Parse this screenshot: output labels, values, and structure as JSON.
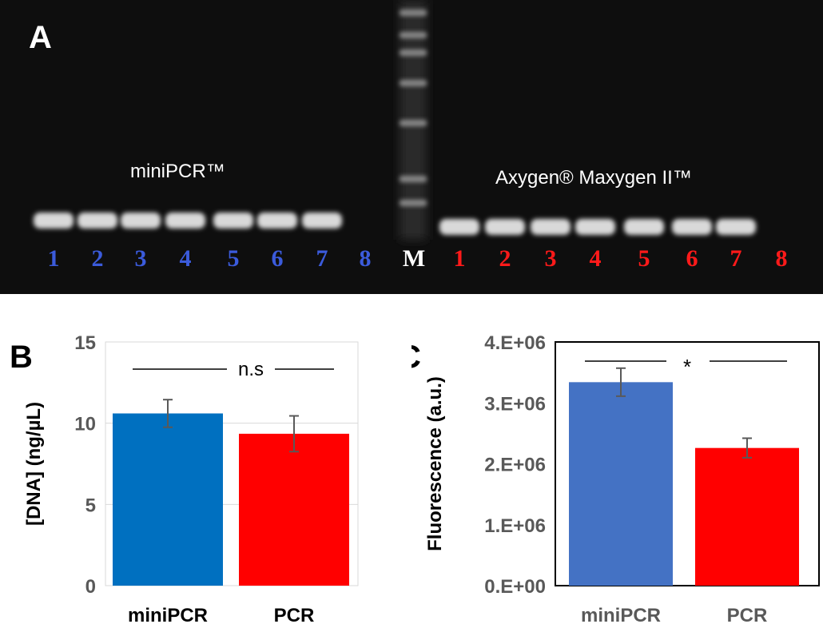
{
  "panels": {
    "a": {
      "letter": "A",
      "label_left": "miniPCR™",
      "label_right": "Axygen® Maxygen II™",
      "lanes_left": [
        "1",
        "2",
        "3",
        "4",
        "5",
        "6",
        "7",
        "8"
      ],
      "marker": "M",
      "lanes_right": [
        "1",
        "2",
        "3",
        "4",
        "5",
        "6",
        "7",
        "8"
      ],
      "colors": {
        "left": "#3b5bdb",
        "right": "#ff1a1a",
        "marker": "#ffffff",
        "bg": "#0e0e0e"
      }
    },
    "b": {
      "letter": "B"
    },
    "c": {
      "letter": "C"
    }
  },
  "chart_data": [
    {
      "id": "B",
      "type": "bar",
      "categories": [
        "miniPCR",
        "PCR"
      ],
      "values": [
        10.6,
        9.35
      ],
      "errors": [
        0.85,
        1.1
      ],
      "colors": [
        "#0070c0",
        "#ff0000"
      ],
      "ylabel": "[DNA] (ng/µL)",
      "ylim": [
        0,
        15
      ],
      "yticks": [
        "0",
        "5",
        "10",
        "15"
      ],
      "ytick_values": [
        0,
        5,
        10,
        15
      ],
      "grid": true,
      "annotation": "n.s",
      "category_labels": [
        "miniPCR",
        "PCR"
      ]
    },
    {
      "id": "C",
      "type": "bar",
      "categories": [
        "miniPCR",
        "PCR"
      ],
      "values": [
        3340000,
        2260000
      ],
      "errors": [
        230000,
        160000
      ],
      "colors": [
        "#4472c4",
        "#ff0000"
      ],
      "ylabel": "Fluorescence (a.u.)",
      "ylim": [
        0,
        4000000
      ],
      "yticks": [
        "0.E+00",
        "1.E+06",
        "2.E+06",
        "3.E+06",
        "4.E+06"
      ],
      "ytick_values": [
        0,
        1000000,
        2000000,
        3000000,
        4000000
      ],
      "grid": false,
      "annotation": "*",
      "category_labels": [
        "miniPCR",
        "PCR"
      ]
    }
  ]
}
